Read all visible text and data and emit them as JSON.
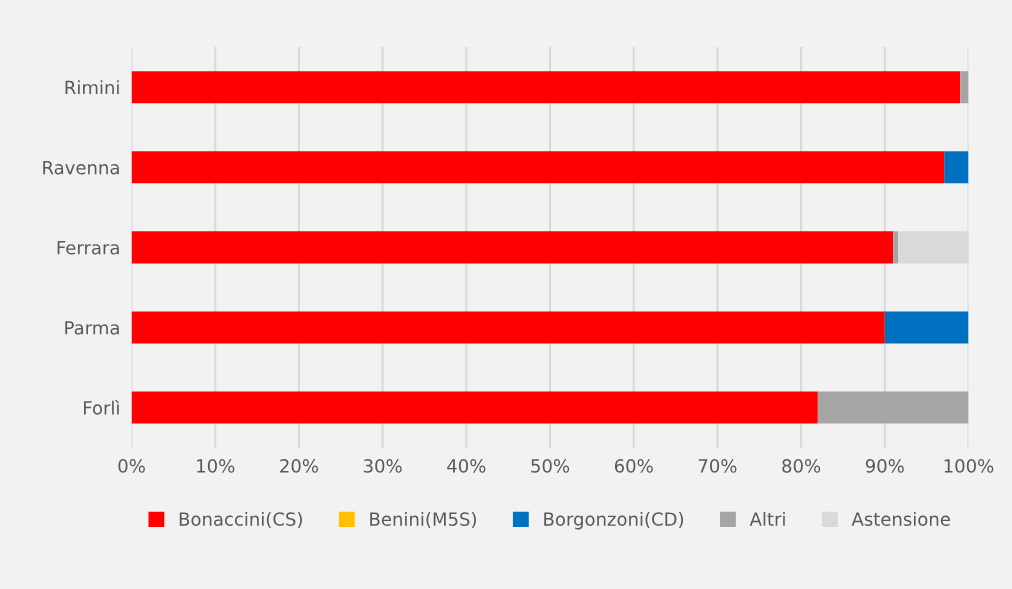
{
  "chart_data": {
    "type": "bar",
    "orientation": "horizontal",
    "stacked": true,
    "categories": [
      "Rimini",
      "Ravenna",
      "Ferrara",
      "Parma",
      "Forlì"
    ],
    "series": [
      {
        "name": "Bonaccini(CS)",
        "color": "#ff0000",
        "values": [
          99.0,
          97.1,
          91.0,
          90.0,
          82.0
        ]
      },
      {
        "name": "Benini(M5S)",
        "color": "#ffc000",
        "values": [
          0,
          0,
          0,
          0,
          0
        ]
      },
      {
        "name": "Borgonzoni(CD)",
        "color": "#0070c0",
        "values": [
          0,
          2.9,
          0,
          10.0,
          0
        ]
      },
      {
        "name": "Altri",
        "color": "#a5a5a5",
        "values": [
          1.0,
          0,
          0.6,
          0,
          18.0
        ]
      },
      {
        "name": "Astensione",
        "color": "#d9d9d9",
        "values": [
          0,
          0,
          8.4,
          0,
          0
        ]
      }
    ],
    "xlim": [
      0,
      100
    ],
    "xticks": [
      {
        "value": 0,
        "label": "0%"
      },
      {
        "value": 10,
        "label": "10%"
      },
      {
        "value": 20,
        "label": "20%"
      },
      {
        "value": 30,
        "label": "30%"
      },
      {
        "value": 40,
        "label": "40%"
      },
      {
        "value": 50,
        "label": "50%"
      },
      {
        "value": 60,
        "label": "60%"
      },
      {
        "value": 70,
        "label": "70%"
      },
      {
        "value": 80,
        "label": "80%"
      },
      {
        "value": 90,
        "label": "90%"
      },
      {
        "value": 100,
        "label": "100%"
      }
    ],
    "grid": "x",
    "legend": "bottom"
  }
}
